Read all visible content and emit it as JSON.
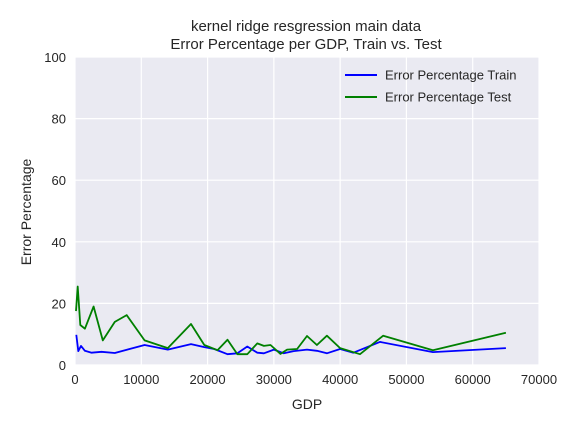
{
  "chart_data": {
    "type": "line",
    "title": [
      "kernel ridge resgression main data",
      "Error Percentage per GDP, Train vs. Test"
    ],
    "xlabel": "GDP",
    "ylabel": "Error Percentage",
    "xlim": [
      0,
      70000
    ],
    "ylim": [
      0,
      100
    ],
    "xticks": [
      0,
      10000,
      20000,
      30000,
      40000,
      50000,
      60000,
      70000
    ],
    "yticks": [
      0,
      20,
      40,
      60,
      80,
      100
    ],
    "grid": true,
    "legend_position": "top-right",
    "background": "#EAEAF2",
    "series": [
      {
        "name": "Error Percentage Train",
        "color": "#0000FF",
        "x": [
          200,
          500,
          900,
          1500,
          2500,
          4000,
          6000,
          10500,
          14000,
          17500,
          19500,
          21000,
          23000,
          24500,
          26000,
          27500,
          28500,
          30000,
          31500,
          33000,
          35000,
          36500,
          38000,
          40000,
          42000,
          46000,
          54000,
          65000
        ],
        "y": [
          9.8,
          4.5,
          6.2,
          4.6,
          4.0,
          4.3,
          3.9,
          6.5,
          5.0,
          6.8,
          5.8,
          5.2,
          3.5,
          3.8,
          6.0,
          4.0,
          3.8,
          5.0,
          3.8,
          4.5,
          5.0,
          4.6,
          3.8,
          5.2,
          4.0,
          7.5,
          4.2,
          5.5
        ]
      },
      {
        "name": "Error Percentage Test",
        "color": "#008000",
        "x": [
          150,
          400,
          800,
          1500,
          2800,
          4200,
          6000,
          7800,
          10500,
          14000,
          17500,
          19500,
          21500,
          23000,
          24500,
          26000,
          27500,
          28500,
          29500,
          31000,
          32000,
          33500,
          35000,
          36500,
          38000,
          40000,
          43000,
          46500,
          54000,
          65000
        ],
        "y": [
          17.5,
          25.5,
          13.0,
          11.8,
          19.0,
          8.0,
          14.0,
          16.2,
          8.0,
          5.5,
          13.3,
          6.5,
          4.8,
          8.2,
          3.5,
          3.5,
          7.0,
          6.2,
          6.5,
          3.6,
          5.0,
          5.2,
          9.4,
          6.5,
          9.5,
          5.5,
          3.5,
          9.5,
          4.8,
          10.5
        ]
      }
    ]
  }
}
